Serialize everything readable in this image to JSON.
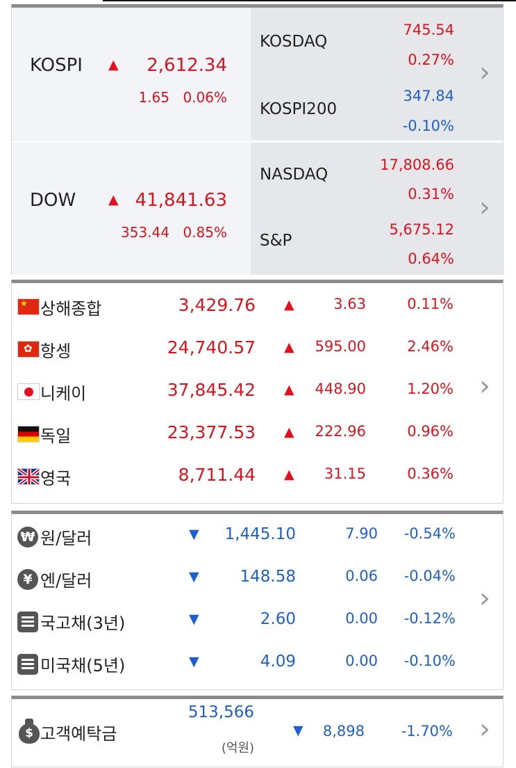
{
  "domestic": {
    "kospi": {
      "name": "KOSPI",
      "value": "2,612.34",
      "change": "1.65",
      "percent": "0.06%"
    },
    "kosdaq": {
      "name": "KOSDAQ",
      "value": "745.54",
      "percent": "0.27%"
    },
    "kospi200": {
      "name": "KOSPI200",
      "value": "347.84",
      "percent": "-0.10%"
    }
  },
  "us": {
    "dow": {
      "name": "DOW",
      "value": "41,841.63",
      "change": "353.44",
      "percent": "0.85%"
    },
    "nasdaq": {
      "name": "NASDAQ",
      "value": "17,808.66",
      "percent": "0.31%"
    },
    "sp": {
      "name": "S&P",
      "value": "5,675.12",
      "percent": "0.64%"
    }
  },
  "global": [
    {
      "flag": "china-flag-icon",
      "name": "상해종합",
      "value": "3,429.76",
      "change": "3.63",
      "percent": "0.11%"
    },
    {
      "flag": "hongkong-flag-icon",
      "name": "항셍",
      "value": "24,740.57",
      "change": "595.00",
      "percent": "2.46%"
    },
    {
      "flag": "japan-flag-icon",
      "name": "니케이",
      "value": "37,845.42",
      "change": "448.90",
      "percent": "1.20%"
    },
    {
      "flag": "germany-flag-icon",
      "name": "독일",
      "value": "23,377.53",
      "change": "222.96",
      "percent": "0.96%"
    },
    {
      "flag": "uk-flag-icon",
      "name": "영국",
      "value": "8,711.44",
      "change": "31.15",
      "percent": "0.36%"
    }
  ],
  "rates": [
    {
      "icon": "won-icon",
      "symbol": "₩",
      "name": "원/달러",
      "value": "1,445.10",
      "change": "7.90",
      "percent": "-0.54%"
    },
    {
      "icon": "yen-icon",
      "symbol": "¥",
      "name": "엔/달러",
      "value": "148.58",
      "change": "0.06",
      "percent": "-0.04%"
    },
    {
      "icon": "document-icon",
      "name": "국고채(3년)",
      "value": "2.60",
      "change": "0.00",
      "percent": "-0.12%"
    },
    {
      "icon": "document-icon",
      "name": "미국채(5년)",
      "value": "4.09",
      "change": "0.00",
      "percent": "-0.10%"
    }
  ],
  "deposit": {
    "icon": "money-bag-icon",
    "name": "고객예탁금",
    "value": "513,566",
    "unit": "(억원)",
    "change": "8,898",
    "percent": "-1.70%"
  },
  "glyphs": {
    "up": "▲",
    "down": "▼",
    "chevron": "›",
    "money": "$"
  },
  "colors": {
    "up": "#d8141e",
    "down": "#1e60c8",
    "panel_border": "#8b8b8b"
  }
}
